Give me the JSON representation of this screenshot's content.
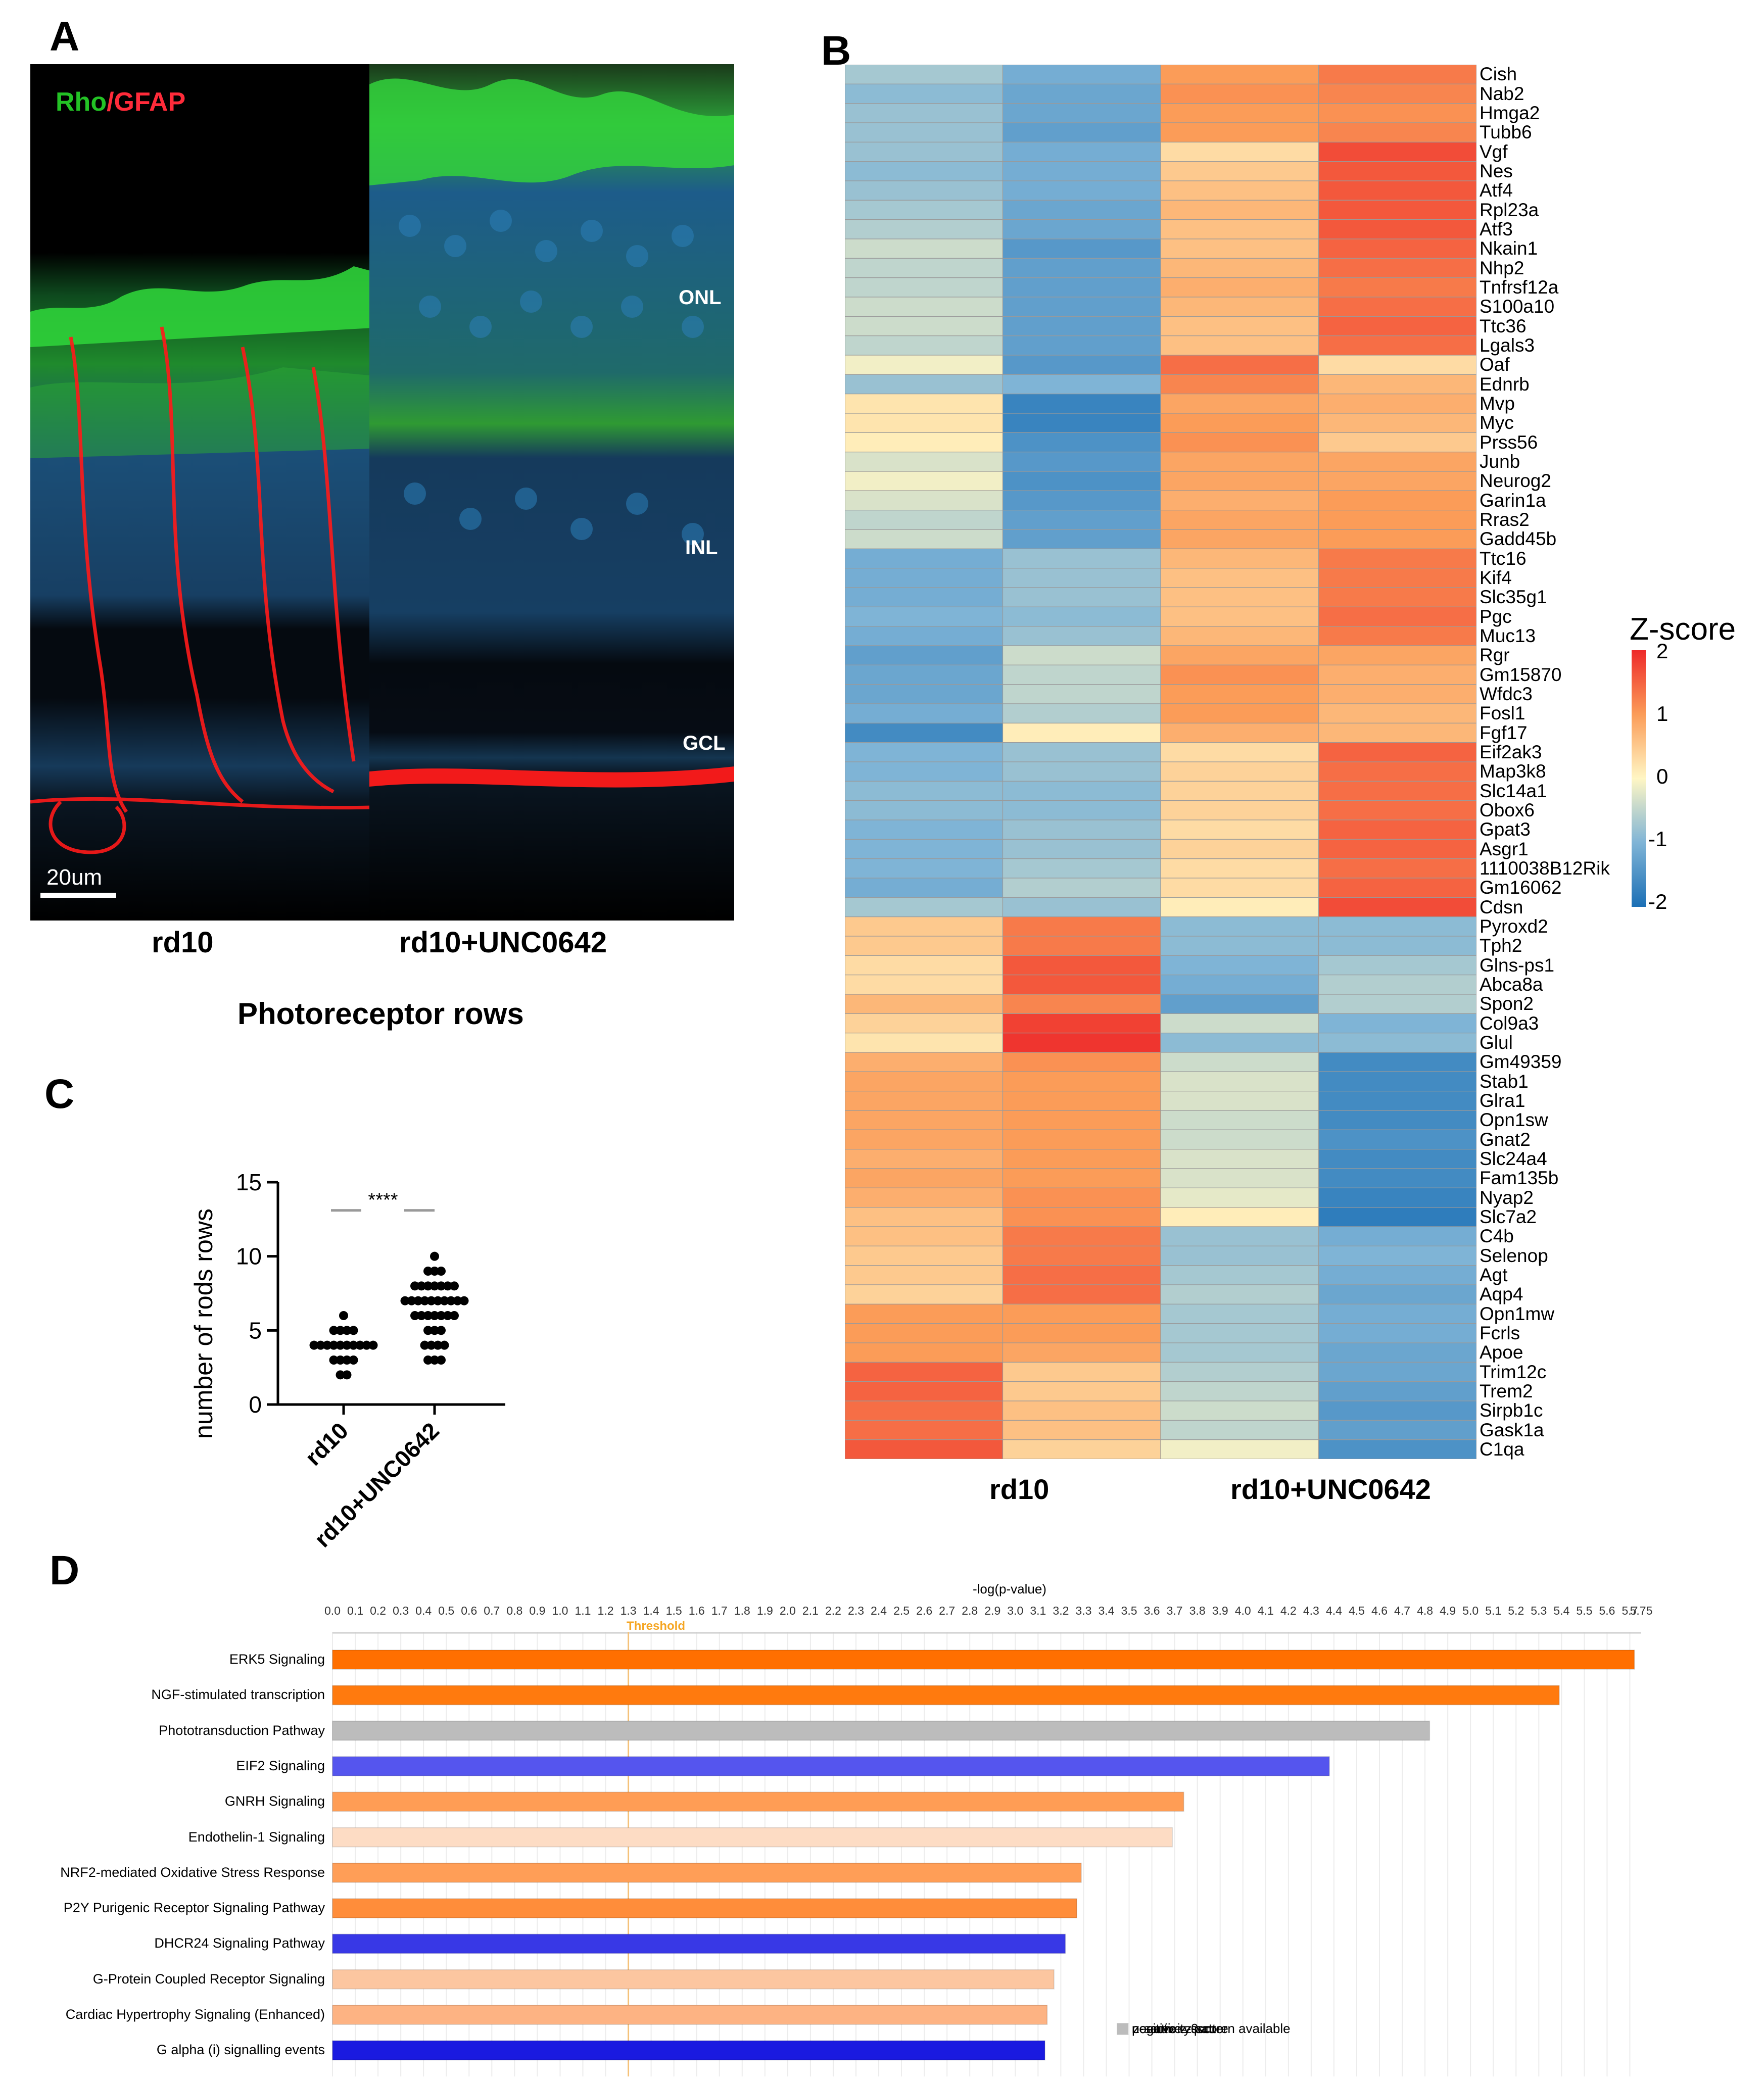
{
  "panels": {
    "a": "A",
    "b": "B",
    "c": "C",
    "d": "D"
  },
  "microscopy": {
    "legend_rho": "Rho",
    "legend_sep": "/",
    "legend_gfap": "GFAP",
    "legend_rho_color": "#23c225",
    "legend_gfap_color": "#ff2b3a",
    "layers": {
      "onl": "ONL",
      "inl": "INL",
      "gcl": "GCL"
    },
    "scale_bar": "20um",
    "captions": {
      "left": "rd10",
      "right": "rd10+UNC0642"
    }
  },
  "chart_c": {
    "type": "scatter",
    "title": "Photoreceptor rows",
    "ylabel": "number of rods rows",
    "categories": [
      "rd10",
      "rd10+UNC0642"
    ],
    "ylim": [
      0,
      15
    ],
    "yticks": [
      "0",
      "5",
      "10",
      "15"
    ],
    "significance": "****",
    "groups": [
      {
        "name": "rd10",
        "counts": [
          [
            2,
            2
          ],
          [
            3,
            4
          ],
          [
            4,
            10
          ],
          [
            5,
            4
          ],
          [
            6,
            1
          ]
        ]
      },
      {
        "name": "rd10+UNC0642",
        "counts": [
          [
            3,
            3
          ],
          [
            4,
            4
          ],
          [
            5,
            3
          ],
          [
            6,
            7
          ],
          [
            7,
            10
          ],
          [
            8,
            7
          ],
          [
            9,
            3
          ],
          [
            10,
            1
          ]
        ]
      }
    ]
  },
  "chart_data": [
    {
      "type": "heatmap",
      "title": "",
      "legend_title": "Z-score",
      "scale_ticks": [
        "2",
        "1",
        "0",
        "-1",
        "-2"
      ],
      "zlim": [
        -2,
        2
      ],
      "column_groups": [
        "rd10",
        "rd10+UNC0642"
      ],
      "columns": 4,
      "genes": [
        "Cish",
        "Nab2",
        "Hmga2",
        "Tubb6",
        "Vgf",
        "Nes",
        "Atf4",
        "Rpl23a",
        "Atf3",
        "Nkain1",
        "Nhp2",
        "Tnfrsf12a",
        "S100a10",
        "Ttc36",
        "Lgals3",
        "Oaf",
        "Ednrb",
        "Mvp",
        "Myc",
        "Prss56",
        "Junb",
        "Neurog2",
        "Garin1a",
        "Rras2",
        "Gadd45b",
        "Ttc16",
        "Kif4",
        "Slc35g1",
        "Pgc",
        "Muc13",
        "Rgr",
        "Gm15870",
        "Wfdc3",
        "Fosl1",
        "Fgf17",
        "Eif2ak3",
        "Map3k8",
        "Slc14a1",
        "Obox6",
        "Gpat3",
        "Asgr1",
        "1110038B12Rik",
        "Gm16062",
        "Cdsn",
        "Pyroxd2",
        "Tph2",
        "Glns-ps1",
        "Abca8a",
        "Spon2",
        "Col9a3",
        "Glul",
        "Gm49359",
        "Stab1",
        "Glra1",
        "Opn1sw",
        "Gnat2",
        "Slc24a4",
        "Fam135b",
        "Nyap2",
        "Slc7a2",
        "C4b",
        "Selenop",
        "Agt",
        "Aqp4",
        "Opn1mw",
        "Fcrls",
        "Apoe",
        "Trim12c",
        "Trem2",
        "Sirpb1c",
        "Gask1a",
        "C1qa"
      ],
      "values": [
        [
          -0.7,
          -1.1,
          1.0,
          1.3
        ],
        [
          -0.9,
          -1.2,
          1.1,
          1.2
        ],
        [
          -0.8,
          -1.2,
          1.0,
          1.1
        ],
        [
          -0.8,
          -1.3,
          1.0,
          1.2
        ],
        [
          -0.8,
          -1.1,
          0.3,
          1.7
        ],
        [
          -0.9,
          -1.1,
          0.5,
          1.6
        ],
        [
          -0.8,
          -1.1,
          0.6,
          1.6
        ],
        [
          -0.7,
          -1.2,
          0.7,
          1.6
        ],
        [
          -0.6,
          -1.2,
          0.6,
          1.6
        ],
        [
          -0.4,
          -1.4,
          0.6,
          1.5
        ],
        [
          -0.5,
          -1.3,
          0.7,
          1.4
        ],
        [
          -0.5,
          -1.3,
          0.8,
          1.3
        ],
        [
          -0.4,
          -1.3,
          0.7,
          1.4
        ],
        [
          -0.4,
          -1.3,
          0.6,
          1.5
        ],
        [
          -0.5,
          -1.3,
          0.6,
          1.4
        ],
        [
          -0.1,
          -1.4,
          1.4,
          0.3
        ],
        [
          -0.8,
          -1.0,
          1.2,
          0.7
        ],
        [
          0.2,
          -1.7,
          0.9,
          0.8
        ],
        [
          0.2,
          -1.7,
          1.0,
          0.7
        ],
        [
          0.1,
          -1.5,
          1.1,
          0.5
        ],
        [
          -0.3,
          -1.4,
          0.9,
          0.9
        ],
        [
          -0.1,
          -1.5,
          0.9,
          0.9
        ],
        [
          -0.3,
          -1.4,
          0.8,
          1.0
        ],
        [
          -0.5,
          -1.3,
          0.9,
          1.0
        ],
        [
          -0.4,
          -1.3,
          0.9,
          1.0
        ],
        [
          -1.1,
          -0.8,
          0.7,
          1.3
        ],
        [
          -1.1,
          -0.8,
          0.6,
          1.3
        ],
        [
          -1.1,
          -0.8,
          0.6,
          1.3
        ],
        [
          -1.0,
          -0.9,
          0.6,
          1.4
        ],
        [
          -1.1,
          -0.8,
          0.7,
          1.3
        ],
        [
          -1.3,
          -0.4,
          0.9,
          0.9
        ],
        [
          -1.2,
          -0.5,
          1.1,
          0.8
        ],
        [
          -1.2,
          -0.5,
          1.0,
          0.8
        ],
        [
          -1.1,
          -0.6,
          1.0,
          0.7
        ],
        [
          -1.6,
          0.1,
          0.8,
          0.7
        ],
        [
          -1.0,
          -0.8,
          0.3,
          1.5
        ],
        [
          -1.0,
          -0.8,
          0.4,
          1.4
        ],
        [
          -0.9,
          -0.9,
          0.4,
          1.4
        ],
        [
          -0.9,
          -0.9,
          0.4,
          1.4
        ],
        [
          -1.0,
          -0.8,
          0.3,
          1.5
        ],
        [
          -1.0,
          -0.8,
          0.4,
          1.5
        ],
        [
          -1.0,
          -0.7,
          0.3,
          1.4
        ],
        [
          -1.1,
          -0.6,
          0.3,
          1.5
        ],
        [
          -0.7,
          -0.8,
          0.1,
          1.7
        ],
        [
          0.5,
          1.3,
          -0.9,
          -0.9
        ],
        [
          0.5,
          1.3,
          -0.9,
          -0.9
        ],
        [
          0.3,
          1.6,
          -1.0,
          -0.7
        ],
        [
          0.3,
          1.6,
          -1.1,
          -0.6
        ],
        [
          0.7,
          1.2,
          -1.3,
          -0.6
        ],
        [
          0.4,
          1.8,
          -0.4,
          -1.0
        ],
        [
          0.2,
          1.9,
          -0.9,
          -0.9
        ],
        [
          0.8,
          1.1,
          -0.4,
          -1.6
        ],
        [
          0.9,
          1.0,
          -0.3,
          -1.6
        ],
        [
          0.9,
          1.0,
          -0.3,
          -1.6
        ],
        [
          0.9,
          1.0,
          -0.4,
          -1.6
        ],
        [
          0.9,
          1.0,
          -0.4,
          -1.5
        ],
        [
          0.8,
          1.0,
          -0.3,
          -1.6
        ],
        [
          0.9,
          1.0,
          -0.3,
          -1.6
        ],
        [
          0.8,
          1.1,
          -0.2,
          -1.7
        ],
        [
          0.6,
          1.1,
          0.1,
          -1.8
        ],
        [
          0.6,
          1.3,
          -0.8,
          -1.1
        ],
        [
          0.5,
          1.3,
          -0.8,
          -1.0
        ],
        [
          0.5,
          1.4,
          -0.7,
          -1.1
        ],
        [
          0.4,
          1.4,
          -0.6,
          -1.2
        ],
        [
          1.0,
          1.0,
          -0.7,
          -1.1
        ],
        [
          1.0,
          1.0,
          -0.7,
          -1.1
        ],
        [
          1.0,
          0.9,
          -0.7,
          -1.2
        ],
        [
          1.5,
          0.5,
          -0.6,
          -1.2
        ],
        [
          1.5,
          0.5,
          -0.5,
          -1.3
        ],
        [
          1.4,
          0.6,
          -0.4,
          -1.4
        ],
        [
          1.4,
          0.6,
          -0.5,
          -1.3
        ],
        [
          1.6,
          0.4,
          -0.1,
          -1.5
        ]
      ]
    },
    {
      "type": "bar",
      "orientation": "horizontal",
      "title": "-log(p-value)",
      "threshold_label": "Threshold",
      "threshold_value": 1.3,
      "xlim": [
        0,
        5.75
      ],
      "tick_step": 0.05,
      "xtick_labels": [
        "0.0",
        "0.1",
        "0.2",
        "0.3",
        "0.4",
        "0.5",
        "0.6",
        "0.7",
        "0.8",
        "0.9",
        "1.0",
        "1.1",
        "1.2",
        "1.3",
        "1.4",
        "1.5",
        "1.6",
        "1.7",
        "1.8",
        "1.9",
        "2.0",
        "2.1",
        "2.2",
        "2.3",
        "2.4",
        "2.5",
        "2.6",
        "2.7",
        "2.8",
        "2.9",
        "3.0",
        "3.1",
        "3.2",
        "3.3",
        "3.4",
        "3.5",
        "3.6",
        "3.7",
        "3.8",
        "3.9",
        "4.0",
        "4.1",
        "4.2",
        "4.3",
        "4.4",
        "4.5",
        "4.6",
        "4.7",
        "4.8",
        "4.9",
        "5.0",
        "5.1",
        "5.2",
        "5.3",
        "5.4",
        "5.5",
        "5.6",
        "5.7",
        "5.75"
      ],
      "categories": [
        "ERK5 Signaling",
        "NGF-stimulated transcription",
        "Phototransduction Pathway",
        "EIF2 Signaling",
        "GNRH Signaling",
        "Endothelin-1 Signaling",
        "NRF2-mediated Oxidative Stress Response",
        "P2Y Purigenic Receptor Signaling Pathway",
        "DHCR24 Signaling Pathway",
        "G-Protein Coupled Receptor Signaling",
        "Cardiac Hypertrophy Signaling (Enhanced)",
        "G alpha (i) signalling events"
      ],
      "values": [
        5.72,
        5.39,
        4.82,
        4.38,
        3.74,
        3.69,
        3.29,
        3.27,
        3.22,
        3.17,
        3.14,
        3.13
      ],
      "colors": [
        "#ff6f00",
        "#ff7a0e",
        "#bcbcbc",
        "#5555ee",
        "#ff9d55",
        "#fddcc4",
        "#ff9e57",
        "#ff8d3a",
        "#3838e6",
        "#fcc6a0",
        "#fdb383",
        "#1a1ae0"
      ],
      "legend": [
        {
          "label": "positive z-score",
          "color": "#ff7a0e"
        },
        {
          "label": "z-score = 0",
          "color": "#ffffff"
        },
        {
          "label": "negative z-score",
          "color": "#1a1ae0"
        },
        {
          "label": "no activity pattern available",
          "color": "#bcbcbc"
        }
      ]
    }
  ]
}
